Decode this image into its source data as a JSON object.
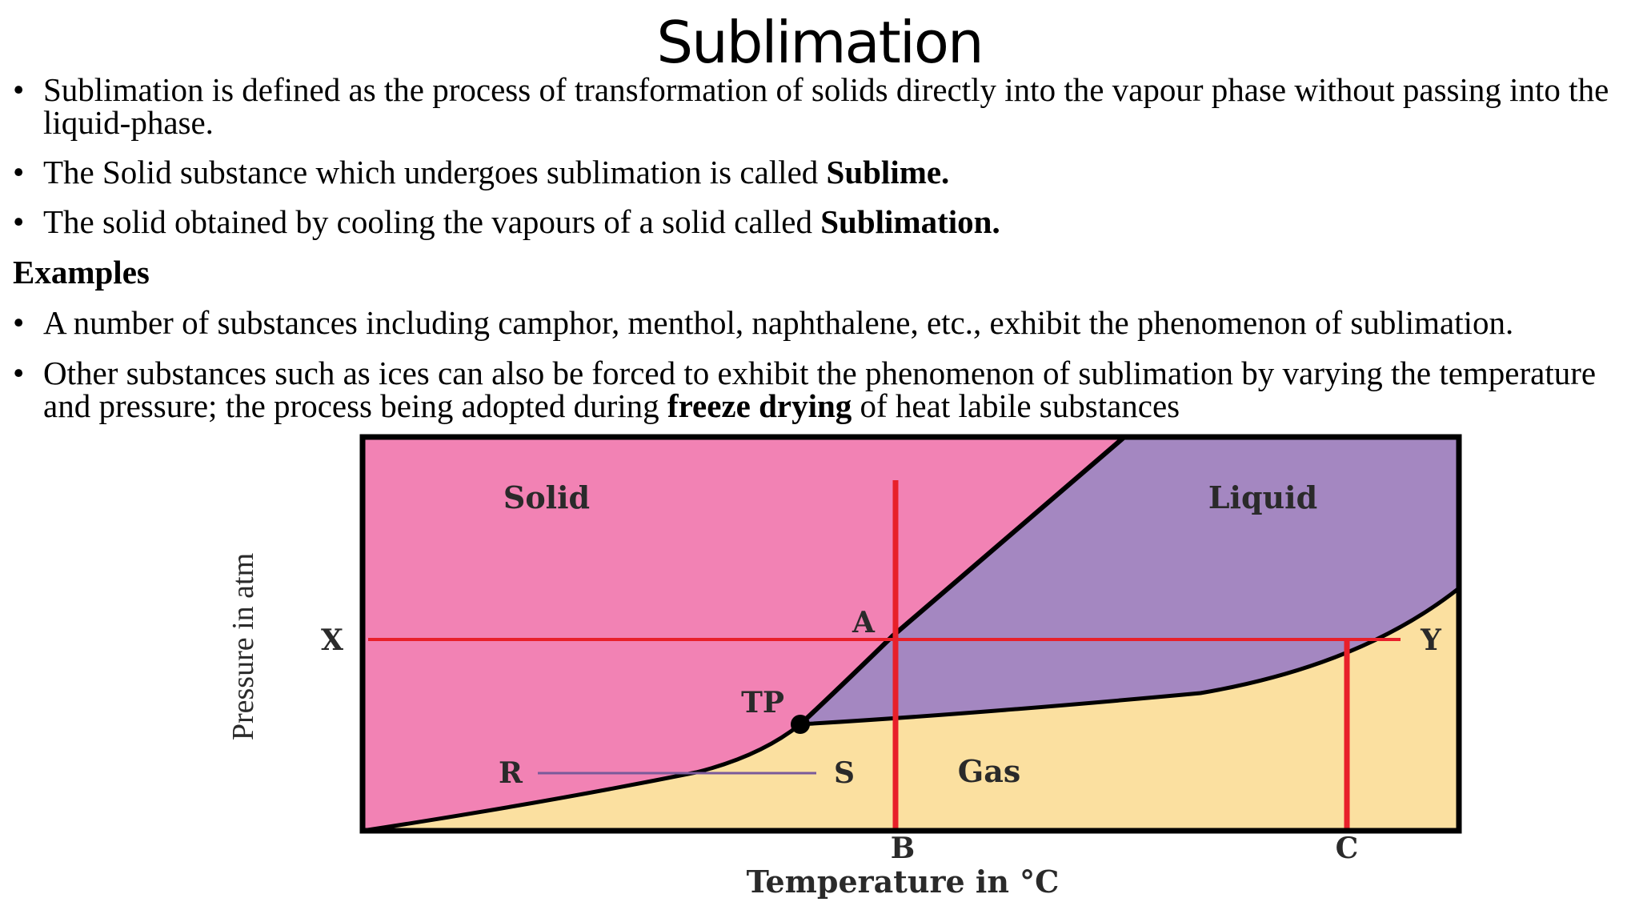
{
  "title": "Sublimation",
  "bullets_top": [
    {
      "text": "Sublimation is defined as the process of transformation of solids directly into the vapour phase without passing into the liquid-phase."
    },
    {
      "text": "The Solid substance which undergoes sublimation is called ",
      "bold": "Sublime."
    },
    {
      "text": "The solid obtained by cooling the vapours of a solid called ",
      "bold": "Sublimation."
    }
  ],
  "examples_heading": "Examples",
  "bullets_examples": [
    {
      "text": " A number of substances including camphor, menthol, naphthalene, etc., exhibit the phenomenon of sublimation."
    },
    {
      "text": "Other substances such as ices can also be forced to exhibit the phenomenon of sublimation by varying the temperature and pressure; the process being adopted during ",
      "bold": "freeze drying",
      "after": " of heat labile substances"
    }
  ],
  "diagram": {
    "region_labels": {
      "solid": "Solid",
      "liquid": "Liquid",
      "gas": "Gas"
    },
    "point_labels": {
      "A": "A",
      "TP": "TP",
      "R": "R",
      "S": "S",
      "X": "X",
      "Y": "Y",
      "B": "B",
      "C": "C"
    },
    "xlabel": "Temperature in °C",
    "ylabel": "Pressure in atm",
    "colors": {
      "solid": "#f282b4",
      "liquid": "#a487c1",
      "gas": "#fbe0a0",
      "marker_lines": "#e8202a",
      "rs_line": "#7a5a9a",
      "curves": "#000000"
    }
  }
}
